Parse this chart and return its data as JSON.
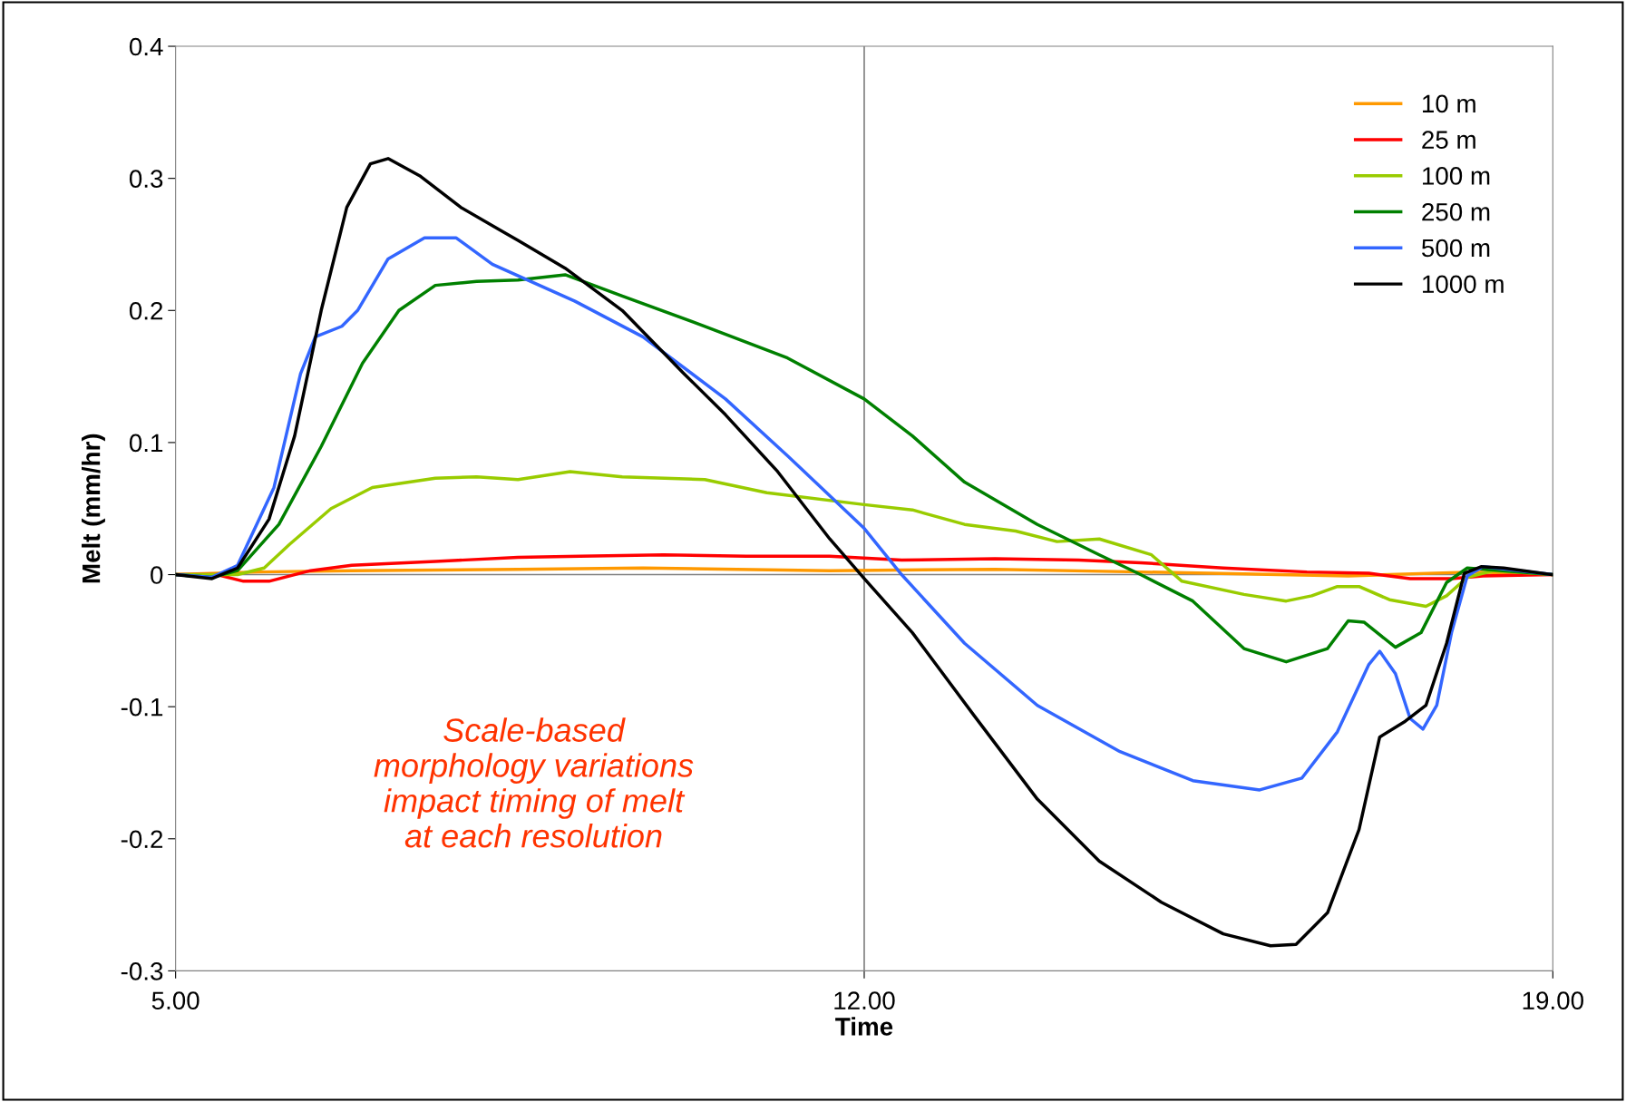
{
  "chart_data": {
    "type": "line",
    "xlabel": "Time",
    "ylabel": "Melt (mm/hr)",
    "xlim": [
      5,
      19
    ],
    "ylim": [
      -0.3,
      0.4
    ],
    "xticks": [
      {
        "value": 5,
        "label": "5.00"
      },
      {
        "value": 12,
        "label": "12.00"
      },
      {
        "value": 19,
        "label": "19.00"
      }
    ],
    "yticks": [
      -0.3,
      -0.2,
      -0.1,
      0,
      0.1,
      0.2,
      0.3,
      0.4
    ],
    "grid": false,
    "legend": "top right",
    "marker": "none",
    "line_style": "solid",
    "ref_lines": [
      {
        "axis": "x",
        "value": 12,
        "color": "#808080"
      },
      {
        "axis": "y",
        "value": 0,
        "color": "#808080"
      }
    ],
    "annotations": [
      "Scale-based\nmorphology variations\nimpact timing of melt\nat each resolution"
    ],
    "series": [
      {
        "name": "10 m",
        "color": "#ff9900",
        "x": [
          5.0,
          5.84,
          6.79,
          8.48,
          9.75,
          11.65,
          13.33,
          14.81,
          16.92,
          18.19,
          19.0
        ],
        "values": [
          0,
          0.002,
          0.003,
          0.004,
          0.005,
          0.003,
          0.004,
          0.002,
          -0.001,
          0.002,
          0
        ]
      },
      {
        "name": "25 m",
        "color": "#ff0000",
        "x": [
          5.0,
          5.42,
          5.69,
          5.95,
          6.37,
          6.79,
          7.64,
          8.48,
          9.11,
          9.96,
          10.8,
          11.65,
          12.38,
          13.33,
          14.18,
          14.81,
          15.65,
          16.5,
          17.13,
          17.55,
          17.97,
          18.29,
          19.0
        ],
        "values": [
          0,
          0,
          -0.005,
          -0.005,
          0.003,
          0.007,
          0.01,
          0.013,
          0.014,
          0.015,
          0.014,
          0.014,
          0.011,
          0.012,
          0.011,
          0.009,
          0.005,
          0.002,
          0.001,
          -0.003,
          -0.003,
          -0.001,
          0
        ]
      },
      {
        "name": "100 m",
        "color": "#99cc00",
        "x": [
          5.0,
          5.63,
          5.9,
          6.16,
          6.58,
          7.0,
          7.64,
          8.06,
          8.48,
          9.01,
          9.54,
          10.38,
          11.01,
          12.0,
          12.49,
          13.02,
          13.54,
          13.96,
          14.39,
          14.92,
          15.23,
          15.86,
          16.29,
          16.55,
          16.81,
          17.03,
          17.34,
          17.71,
          17.92,
          18.13,
          18.4,
          19.0
        ],
        "values": [
          0,
          0,
          0.005,
          0.023,
          0.05,
          0.066,
          0.073,
          0.074,
          0.072,
          0.078,
          0.074,
          0.072,
          0.062,
          0.053,
          0.049,
          0.038,
          0.033,
          0.025,
          0.027,
          0.015,
          -0.005,
          -0.015,
          -0.02,
          -0.016,
          -0.009,
          -0.009,
          -0.019,
          -0.024,
          -0.016,
          -0.002,
          0.003,
          0
        ]
      },
      {
        "name": "250 m",
        "color": "#008000",
        "x": [
          5.0,
          5.37,
          5.63,
          6.05,
          6.48,
          6.9,
          7.27,
          7.64,
          8.06,
          8.48,
          8.96,
          9.54,
          10.38,
          11.22,
          12.0,
          12.49,
          13.02,
          13.76,
          14.39,
          14.81,
          15.34,
          15.86,
          16.29,
          16.71,
          16.92,
          17.08,
          17.4,
          17.66,
          17.92,
          18.13,
          19.0
        ],
        "values": [
          0,
          -0.002,
          0.003,
          0.038,
          0.097,
          0.16,
          0.2,
          0.219,
          0.222,
          0.223,
          0.227,
          0.211,
          0.188,
          0.164,
          0.133,
          0.105,
          0.07,
          0.038,
          0.015,
          0,
          -0.02,
          -0.056,
          -0.066,
          -0.056,
          -0.035,
          -0.036,
          -0.055,
          -0.044,
          -0.006,
          0.005,
          0
        ]
      },
      {
        "name": "500 m",
        "color": "#3366ff",
        "x": [
          5.0,
          5.37,
          5.63,
          6.0,
          6.27,
          6.42,
          6.69,
          6.85,
          7.16,
          7.53,
          7.85,
          8.22,
          9.06,
          9.75,
          10.59,
          11.22,
          12.0,
          12.38,
          13.02,
          13.76,
          14.6,
          15.34,
          16.02,
          16.45,
          16.81,
          17.13,
          17.24,
          17.4,
          17.55,
          17.68,
          17.82,
          17.97,
          18.13,
          18.29,
          19.0
        ],
        "values": [
          0,
          -0.002,
          0.007,
          0.066,
          0.152,
          0.18,
          0.188,
          0.2,
          0.239,
          0.255,
          0.255,
          0.235,
          0.207,
          0.18,
          0.133,
          0.09,
          0.035,
          0,
          -0.052,
          -0.099,
          -0.134,
          -0.156,
          -0.163,
          -0.154,
          -0.119,
          -0.068,
          -0.058,
          -0.075,
          -0.109,
          -0.117,
          -0.099,
          -0.044,
          -0.001,
          0.006,
          0
        ]
      },
      {
        "name": "1000 m",
        "color": "#000000",
        "x": [
          5.0,
          5.37,
          5.63,
          5.95,
          6.21,
          6.48,
          6.74,
          6.98,
          7.16,
          7.48,
          7.9,
          8.48,
          8.96,
          9.54,
          10.17,
          10.59,
          11.12,
          11.65,
          12.0,
          12.49,
          13.12,
          13.76,
          14.39,
          15.02,
          15.65,
          16.13,
          16.39,
          16.71,
          17.03,
          17.24,
          17.5,
          17.71,
          17.92,
          18.1,
          18.27,
          18.5,
          19.0
        ],
        "values": [
          0,
          -0.003,
          0.005,
          0.042,
          0.105,
          0.2,
          0.278,
          0.311,
          0.315,
          0.302,
          0.278,
          0.253,
          0.232,
          0.2,
          0.152,
          0.121,
          0.078,
          0.027,
          -0.003,
          -0.044,
          -0.107,
          -0.17,
          -0.217,
          -0.248,
          -0.272,
          -0.281,
          -0.28,
          -0.256,
          -0.193,
          -0.123,
          -0.111,
          -0.099,
          -0.052,
          0.001,
          0.006,
          0.005,
          0
        ]
      }
    ]
  }
}
